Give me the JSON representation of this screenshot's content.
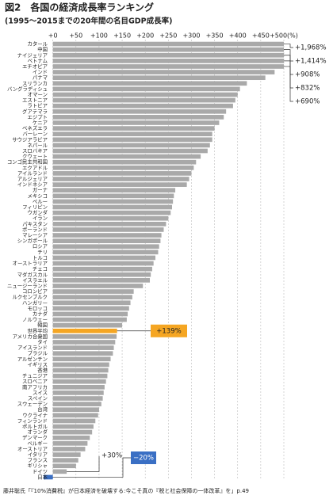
{
  "chart_data": {
    "type": "bar",
    "orientation": "horizontal",
    "title": "図2　各国の経済成長率ランキング",
    "subtitle": "(1995～2015までの20年間の名目GDP成長率)",
    "source": "藤井聡氏「『10%消費税』が日本経済を破壊する:今こそ真の『税と社会保障の一体改革』を」p.49",
    "categories": [
      "カタール",
      "中国",
      "ナイジェリア",
      "ベトナム",
      "エチオピア",
      "インド",
      "パナマ",
      "スリランカ",
      "バングラディシュ",
      "オマーン",
      "エストニア",
      "ラトビア",
      "グアテマラ",
      "エジプト",
      "ケニア",
      "ベネズエラ",
      "バーレーン",
      "サウジアラビア",
      "ネパール",
      "スロバキア",
      "クウェート",
      "コンゴ民主共和国",
      "エクアドル",
      "アイルランド",
      "アルジェリア",
      "インドネシア",
      "ガーナ",
      "メキシコ",
      "ペルー",
      "フィリピン",
      "ウガンダ",
      "イラン",
      "パキスタン",
      "ポーランド",
      "マレーシア",
      "シンガポール",
      "ロシア",
      "チリ",
      "トルコ",
      "オーストラリア",
      "チェコ",
      "マダガスカル",
      "イスラエル",
      "ニュージーランド",
      "コロンビア",
      "ルクセンブルク",
      "ハンガリー",
      "モロッコ",
      "カナダ",
      "ノルウェー",
      "韓国",
      "世界平均",
      "アメリカ合衆国",
      "タイ",
      "アイスランド",
      "ブラジル",
      "アルゼンチン",
      "イギリス",
      "香港",
      "チュニジア",
      "スロベニア",
      "南アフリカ",
      "スイス",
      "スペイン",
      "スウェーデン",
      "台湾",
      "ウクライナ",
      "フィンランド",
      "ポルトガル",
      "オランダ",
      "デンマーク",
      "ベルギー",
      "オーストリア",
      "イタリア",
      "フランス",
      "ギリシャ",
      "ドイツ",
      "日本"
    ],
    "values": [
      1968,
      1414,
      908,
      832,
      690,
      480,
      460,
      420,
      405,
      400,
      395,
      390,
      375,
      370,
      360,
      350,
      345,
      345,
      340,
      335,
      320,
      310,
      305,
      300,
      295,
      290,
      265,
      262,
      260,
      258,
      255,
      250,
      245,
      240,
      235,
      233,
      230,
      228,
      222,
      218,
      215,
      212,
      210,
      195,
      175,
      172,
      168,
      165,
      162,
      160,
      150,
      139,
      138,
      135,
      132,
      130,
      125,
      122,
      120,
      118,
      115,
      112,
      110,
      108,
      105,
      100,
      98,
      92,
      88,
      85,
      80,
      75,
      70,
      60,
      55,
      50,
      30,
      -20
    ],
    "value_labels": [
      "+1,968%",
      "+1,414%",
      "+908%",
      "+832%",
      "+690%",
      null,
      null,
      null,
      null,
      null,
      null,
      null,
      null,
      null,
      null,
      null,
      null,
      null,
      null,
      null,
      null,
      null,
      null,
      null,
      null,
      null,
      null,
      null,
      null,
      null,
      null,
      null,
      null,
      null,
      null,
      null,
      null,
      null,
      null,
      null,
      null,
      null,
      null,
      null,
      null,
      null,
      null,
      null,
      null,
      null,
      null,
      "+139%",
      null,
      null,
      null,
      null,
      null,
      null,
      null,
      null,
      null,
      null,
      null,
      null,
      null,
      null,
      null,
      null,
      null,
      null,
      null,
      null,
      null,
      null,
      null,
      null,
      "+30%",
      "−20%"
    ],
    "color": "#a9a9a9",
    "colors": [
      "#a9a9a9",
      "#a9a9a9",
      "#a9a9a9",
      "#a9a9a9",
      "#a9a9a9",
      "#a9a9a9",
      "#a9a9a9",
      "#a9a9a9",
      "#a9a9a9",
      "#a9a9a9",
      "#a9a9a9",
      "#a9a9a9",
      "#a9a9a9",
      "#a9a9a9",
      "#a9a9a9",
      "#a9a9a9",
      "#a9a9a9",
      "#a9a9a9",
      "#a9a9a9",
      "#a9a9a9",
      "#a9a9a9",
      "#a9a9a9",
      "#a9a9a9",
      "#a9a9a9",
      "#a9a9a9",
      "#a9a9a9",
      "#a9a9a9",
      "#a9a9a9",
      "#a9a9a9",
      "#a9a9a9",
      "#a9a9a9",
      "#a9a9a9",
      "#a9a9a9",
      "#a9a9a9",
      "#a9a9a9",
      "#a9a9a9",
      "#a9a9a9",
      "#a9a9a9",
      "#a9a9a9",
      "#a9a9a9",
      "#a9a9a9",
      "#a9a9a9",
      "#a9a9a9",
      "#a9a9a9",
      "#a9a9a9",
      "#a9a9a9",
      "#a9a9a9",
      "#a9a9a9",
      "#a9a9a9",
      "#a9a9a9",
      "#a9a9a9",
      "#f5a623",
      "#a9a9a9",
      "#a9a9a9",
      "#a9a9a9",
      "#a9a9a9",
      "#a9a9a9",
      "#a9a9a9",
      "#a9a9a9",
      "#a9a9a9",
      "#a9a9a9",
      "#a9a9a9",
      "#a9a9a9",
      "#a9a9a9",
      "#a9a9a9",
      "#a9a9a9",
      "#a9a9a9",
      "#a9a9a9",
      "#a9a9a9",
      "#a9a9a9",
      "#a9a9a9",
      "#a9a9a9",
      "#a9a9a9",
      "#a9a9a9",
      "#a9a9a9",
      "#a9a9a9",
      "#a9a9a9",
      "#3a6fc4"
    ],
    "xlim": [
      -20,
      500
    ],
    "xticks": [
      {
        "value": 0,
        "label": "+0"
      },
      {
        "value": 50,
        "label": "+50"
      },
      {
        "value": 100,
        "label": "+100"
      },
      {
        "value": 150,
        "label": "+150"
      },
      {
        "value": 200,
        "label": "+200"
      },
      {
        "value": 250,
        "label": "+250"
      },
      {
        "value": 300,
        "label": "+300"
      },
      {
        "value": 350,
        "label": "+350"
      },
      {
        "value": 400,
        "label": "+400"
      },
      {
        "value": 450,
        "label": "+450"
      },
      {
        "value": 500,
        "label": "+500(%)"
      }
    ],
    "grid": true
  }
}
